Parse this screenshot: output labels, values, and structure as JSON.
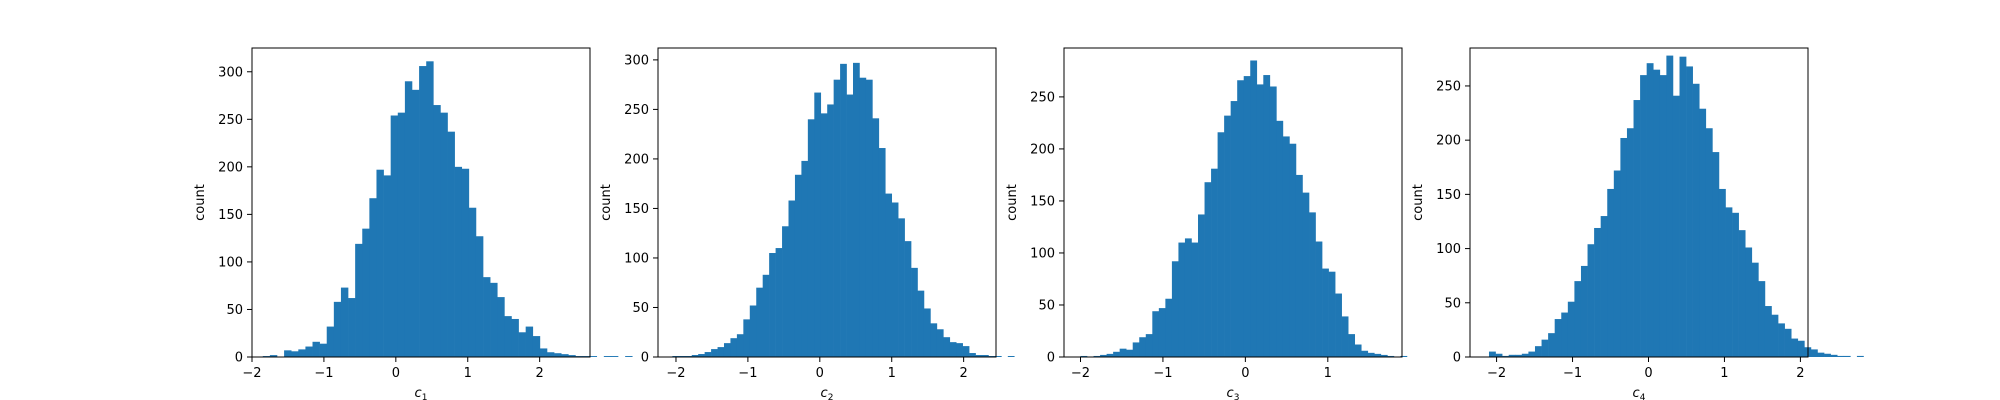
{
  "chart_data": [
    {
      "type": "bar",
      "subtype": "histogram",
      "xlabel_var": "c",
      "xlabel_sub": "1",
      "ylabel": "count",
      "xlim": [
        -2.0,
        2.7
      ],
      "ylim": [
        0,
        325
      ],
      "xticks": [
        -2,
        -1,
        0,
        1,
        2
      ],
      "yticks": [
        0,
        50,
        100,
        150,
        200,
        250,
        300
      ],
      "bin_start": -1.85,
      "bin_width": 0.0988,
      "counts": [
        1,
        2,
        0,
        7,
        6,
        8,
        11,
        16,
        14,
        32,
        58,
        73,
        62,
        119,
        135,
        167,
        197,
        191,
        254,
        257,
        290,
        281,
        306,
        311,
        265,
        257,
        237,
        200,
        198,
        157,
        127,
        84,
        78,
        63,
        43,
        40,
        26,
        32,
        22,
        9,
        5,
        4,
        3,
        2,
        1,
        1,
        1,
        0,
        1,
        1,
        0,
        1
      ],
      "color": "#1f77b4",
      "grid": false,
      "legend": "none"
    },
    {
      "type": "bar",
      "subtype": "histogram",
      "xlabel_var": "c",
      "xlabel_sub": "2",
      "ylabel": "count",
      "xlim": [
        -2.25,
        2.45
      ],
      "ylim": [
        0,
        312
      ],
      "xticks": [
        -2,
        -1,
        0,
        1,
        2
      ],
      "yticks": [
        0,
        50,
        100,
        150,
        200,
        250,
        300
      ],
      "bin_start": -2.05,
      "bin_width": 0.0897,
      "counts": [
        1,
        1,
        1,
        2,
        3,
        5,
        8,
        10,
        14,
        19,
        23,
        38,
        52,
        70,
        83,
        105,
        110,
        132,
        158,
        184,
        198,
        240,
        267,
        246,
        255,
        280,
        296,
        265,
        297,
        282,
        280,
        241,
        211,
        165,
        156,
        140,
        117,
        90,
        67,
        49,
        34,
        28,
        20,
        15,
        14,
        11,
        4,
        2,
        2,
        1,
        1,
        0,
        1
      ],
      "color": "#1f77b4",
      "grid": false,
      "legend": "none"
    },
    {
      "type": "bar",
      "subtype": "histogram",
      "xlabel_var": "c",
      "xlabel_sub": "3",
      "ylabel": "count",
      "xlim": [
        -2.2,
        1.9
      ],
      "ylim": [
        0,
        297
      ],
      "xticks": [
        -2,
        -1,
        0,
        1
      ],
      "yticks": [
        0,
        50,
        100,
        150,
        200,
        250
      ],
      "bin_start": -2.0,
      "bin_width": 0.0792,
      "counts": [
        1,
        0,
        1,
        2,
        3,
        5,
        8,
        7,
        14,
        19,
        22,
        44,
        47,
        56,
        92,
        110,
        114,
        110,
        137,
        168,
        181,
        216,
        232,
        246,
        266,
        270,
        285,
        262,
        271,
        260,
        227,
        212,
        205,
        175,
        158,
        139,
        111,
        85,
        82,
        61,
        39,
        22,
        12,
        6,
        4,
        3,
        2,
        1,
        0,
        1
      ],
      "color": "#1f77b4",
      "grid": false,
      "legend": "none"
    },
    {
      "type": "bar",
      "subtype": "histogram",
      "xlabel_var": "c",
      "xlabel_sub": "4",
      "ylabel": "count",
      "xlim": [
        -2.35,
        2.1
      ],
      "ylim": [
        0,
        285
      ],
      "xticks": [
        -2,
        -1,
        0,
        1,
        2
      ],
      "yticks": [
        0,
        50,
        100,
        150,
        200,
        250
      ],
      "bin_start": -2.1,
      "bin_width": 0.0865,
      "counts": [
        5,
        3,
        1,
        2,
        2,
        3,
        5,
        10,
        16,
        22,
        35,
        41,
        51,
        70,
        84,
        104,
        119,
        130,
        155,
        172,
        202,
        211,
        237,
        260,
        271,
        265,
        260,
        278,
        241,
        277,
        268,
        252,
        229,
        211,
        189,
        155,
        138,
        133,
        117,
        101,
        87,
        70,
        47,
        39,
        31,
        26,
        17,
        15,
        9,
        7,
        4,
        3,
        2,
        1,
        1,
        0,
        1
      ],
      "color": "#1f77b4",
      "grid": false,
      "legend": "none"
    }
  ]
}
